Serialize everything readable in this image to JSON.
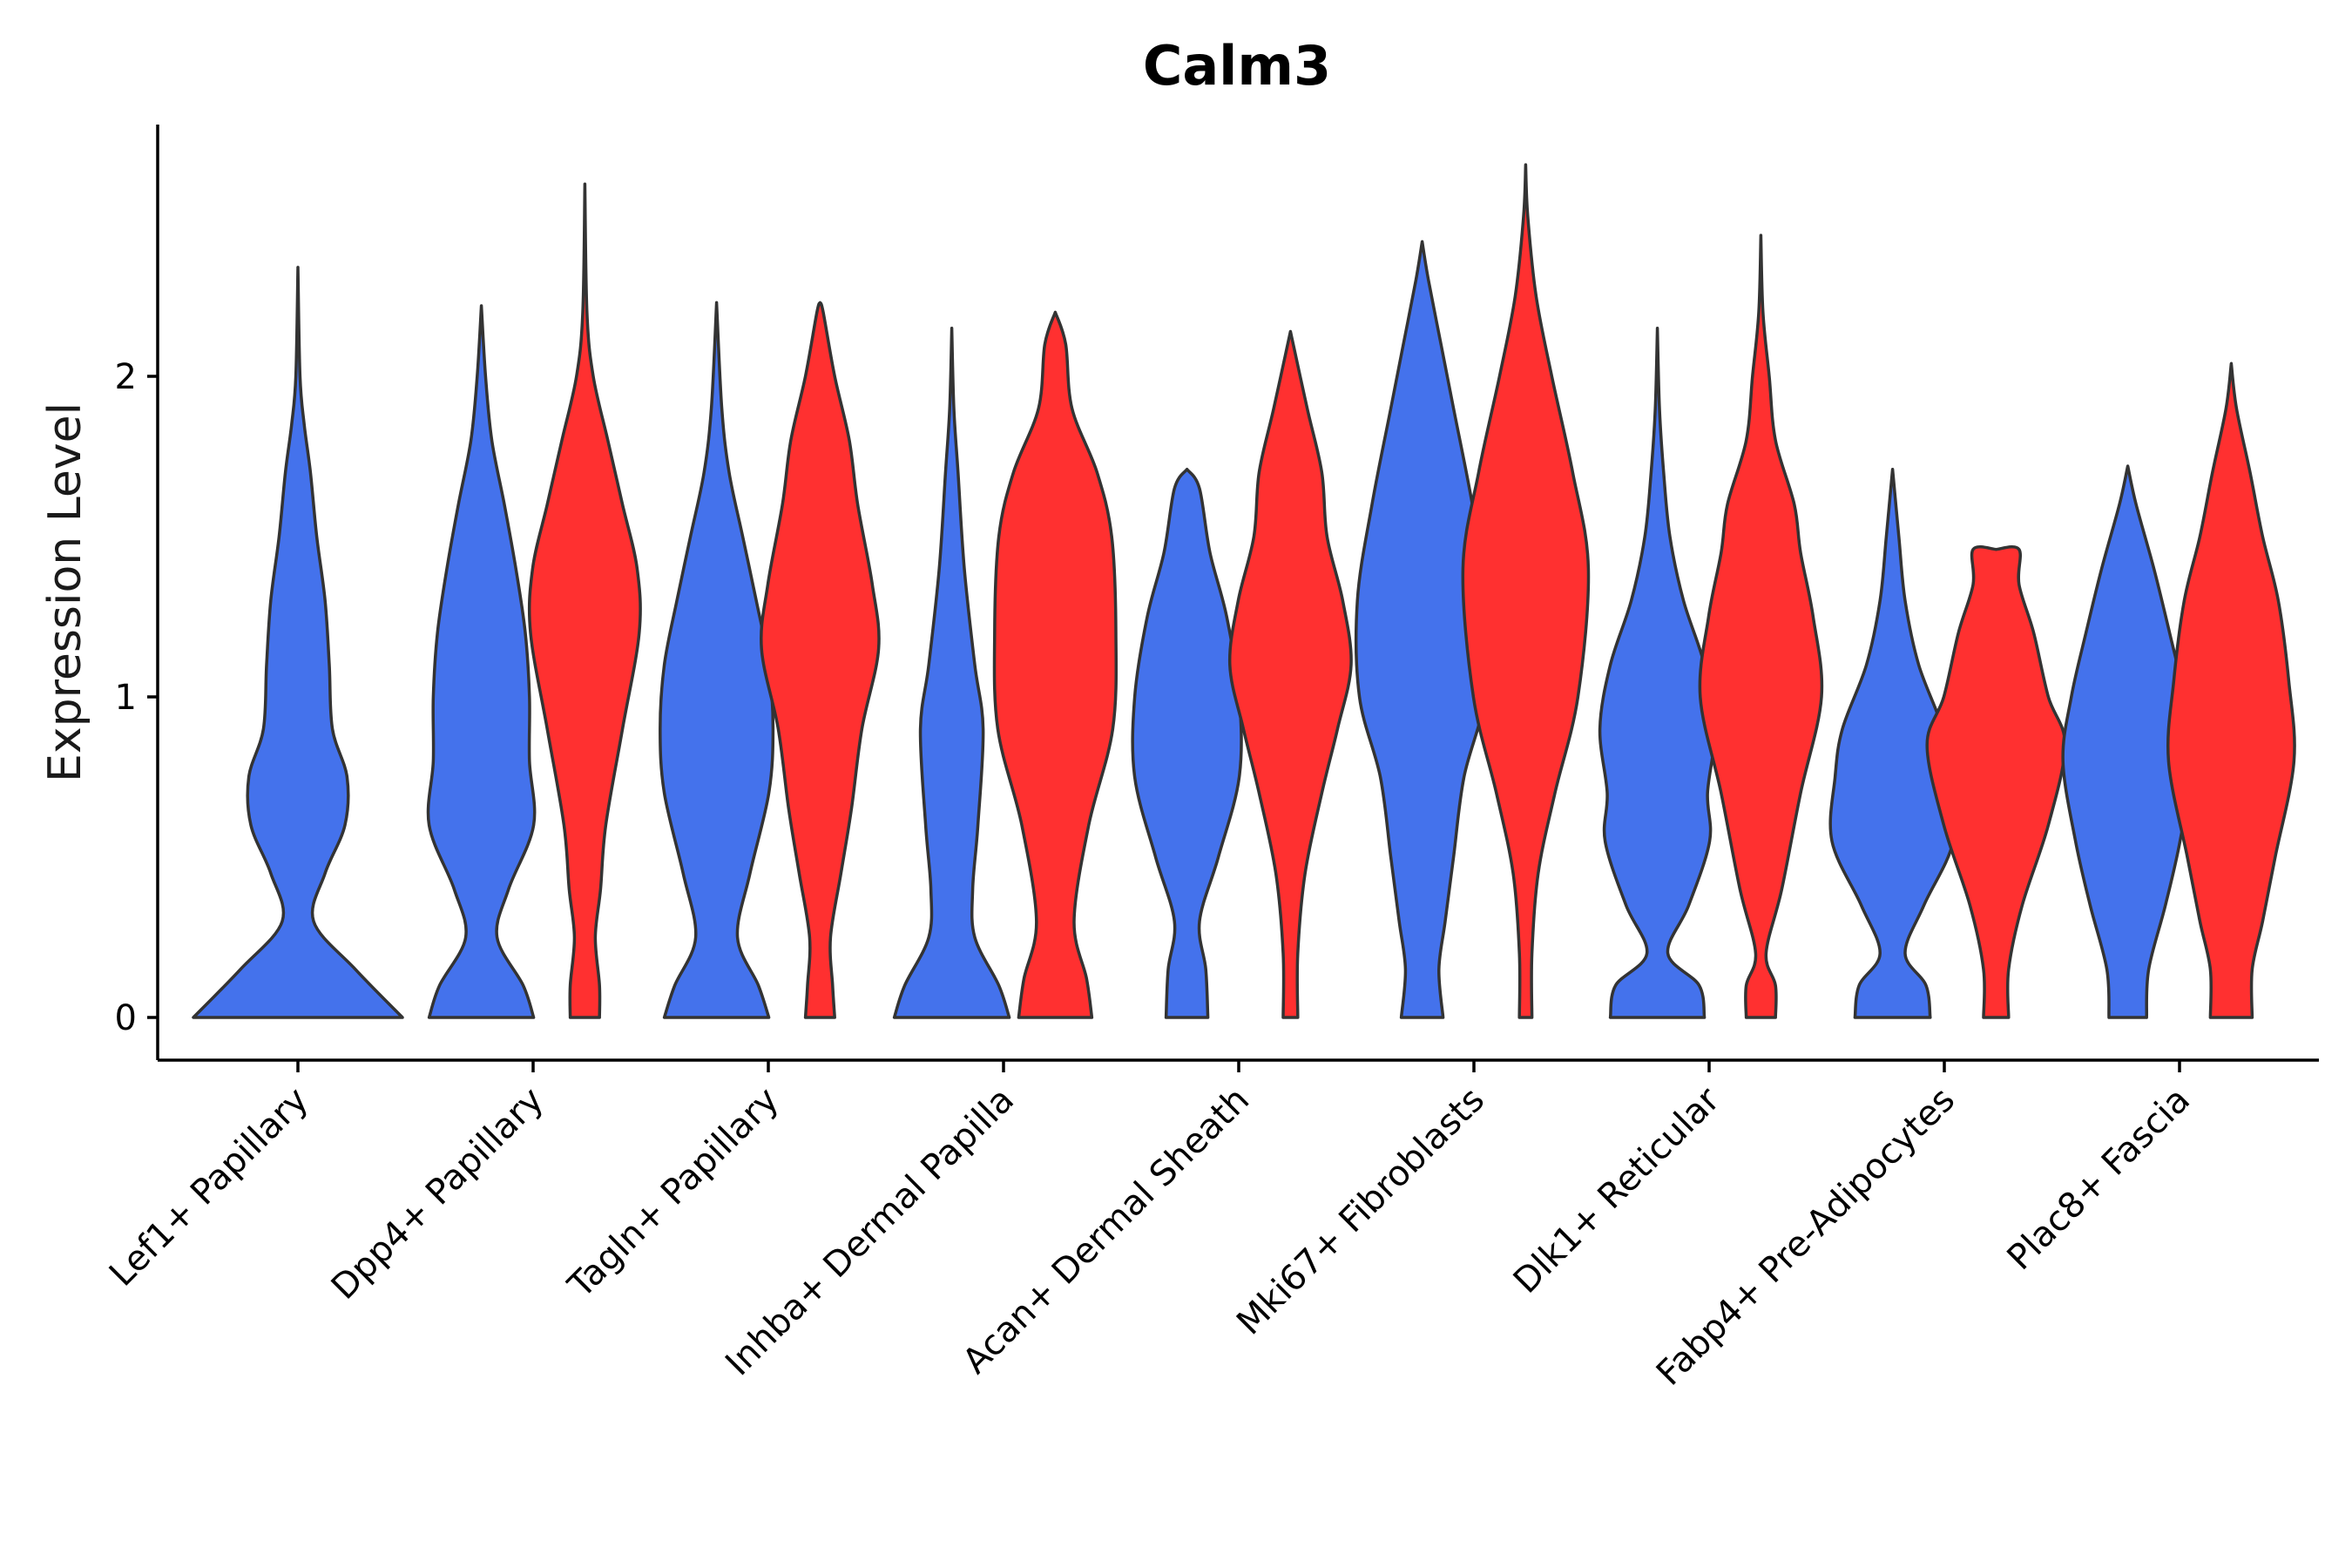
{
  "chart_data": {
    "type": "violin",
    "title": "Calm3",
    "xlabel": "",
    "ylabel": "Expression Level",
    "ylim": [
      -0.13,
      2.8
    ],
    "yticks": [
      0,
      1,
      2
    ],
    "grid": false,
    "legend": "none",
    "series_colors": [
      "#4472EC",
      "#FF3030"
    ],
    "categories": [
      "Lef1+ Papillary",
      "Dpp4+ Papillary",
      "Tagln+ Papillary",
      "Inhba+ Dermal Papilla",
      "Acan+ Dermal Sheath",
      "Mki67+ Fibroblasts",
      "Dlk1+ Reticular",
      "Fabp4+ Pre-Adipocytes",
      "Plac8+ Fascia"
    ],
    "violins": [
      {
        "category": 0,
        "series": 0,
        "offset": 0.0,
        "max": 2.34,
        "profile": [
          [
            0,
            1.0
          ],
          [
            0.15,
            0.55
          ],
          [
            0.3,
            0.15
          ],
          [
            0.45,
            0.26
          ],
          [
            0.6,
            0.45
          ],
          [
            0.75,
            0.47
          ],
          [
            0.9,
            0.33
          ],
          [
            1.1,
            0.3
          ],
          [
            1.3,
            0.26
          ],
          [
            1.5,
            0.18
          ],
          [
            1.7,
            0.12
          ],
          [
            1.85,
            0.06
          ],
          [
            2.0,
            0.02
          ],
          [
            2.34,
            0.0
          ]
        ]
      },
      {
        "category": 1,
        "series": 0,
        "offset": -0.22,
        "max": 2.22,
        "profile": [
          [
            0,
            0.5
          ],
          [
            0.1,
            0.4
          ],
          [
            0.25,
            0.15
          ],
          [
            0.4,
            0.26
          ],
          [
            0.6,
            0.5
          ],
          [
            0.8,
            0.46
          ],
          [
            1.0,
            0.46
          ],
          [
            1.2,
            0.42
          ],
          [
            1.4,
            0.33
          ],
          [
            1.6,
            0.22
          ],
          [
            1.8,
            0.1
          ],
          [
            2.0,
            0.04
          ],
          [
            2.22,
            0.0
          ]
        ]
      },
      {
        "category": 1,
        "series": 1,
        "offset": 0.22,
        "max": 2.6,
        "profile": [
          [
            0,
            0.14
          ],
          [
            0.1,
            0.14
          ],
          [
            0.25,
            0.1
          ],
          [
            0.4,
            0.15
          ],
          [
            0.6,
            0.2
          ],
          [
            0.9,
            0.36
          ],
          [
            1.2,
            0.52
          ],
          [
            1.4,
            0.5
          ],
          [
            1.6,
            0.36
          ],
          [
            1.8,
            0.22
          ],
          [
            2.0,
            0.08
          ],
          [
            2.2,
            0.02
          ],
          [
            2.6,
            0.0
          ]
        ]
      },
      {
        "category": 2,
        "series": 0,
        "offset": -0.22,
        "max": 2.23,
        "profile": [
          [
            0,
            0.5
          ],
          [
            0.1,
            0.4
          ],
          [
            0.25,
            0.2
          ],
          [
            0.45,
            0.32
          ],
          [
            0.7,
            0.5
          ],
          [
            0.9,
            0.54
          ],
          [
            1.1,
            0.5
          ],
          [
            1.3,
            0.38
          ],
          [
            1.5,
            0.25
          ],
          [
            1.7,
            0.12
          ],
          [
            1.9,
            0.05
          ],
          [
            2.23,
            0.0
          ]
        ]
      },
      {
        "category": 2,
        "series": 1,
        "offset": 0.22,
        "max": 2.23,
        "profile": [
          [
            0,
            0.14
          ],
          [
            0.1,
            0.12
          ],
          [
            0.25,
            0.1
          ],
          [
            0.45,
            0.2
          ],
          [
            0.65,
            0.3
          ],
          [
            0.9,
            0.4
          ],
          [
            1.15,
            0.56
          ],
          [
            1.35,
            0.5
          ],
          [
            1.6,
            0.36
          ],
          [
            1.8,
            0.28
          ],
          [
            2.0,
            0.14
          ],
          [
            2.2,
            0.03
          ],
          [
            2.23,
            0.0
          ]
        ]
      },
      {
        "category": 3,
        "series": 0,
        "offset": -0.22,
        "max": 2.15,
        "profile": [
          [
            0,
            0.55
          ],
          [
            0.1,
            0.45
          ],
          [
            0.25,
            0.22
          ],
          [
            0.4,
            0.2
          ],
          [
            0.6,
            0.25
          ],
          [
            0.9,
            0.3
          ],
          [
            1.1,
            0.22
          ],
          [
            1.4,
            0.12
          ],
          [
            1.7,
            0.06
          ],
          [
            1.9,
            0.02
          ],
          [
            2.15,
            0.0
          ]
        ]
      },
      {
        "category": 3,
        "series": 1,
        "offset": 0.22,
        "max": 2.2,
        "profile": [
          [
            0,
            0.35
          ],
          [
            0.12,
            0.3
          ],
          [
            0.3,
            0.18
          ],
          [
            0.6,
            0.32
          ],
          [
            0.9,
            0.55
          ],
          [
            1.2,
            0.58
          ],
          [
            1.5,
            0.54
          ],
          [
            1.7,
            0.4
          ],
          [
            1.9,
            0.16
          ],
          [
            2.1,
            0.1
          ],
          [
            2.2,
            0.0
          ]
        ]
      },
      {
        "category": 4,
        "series": 0,
        "offset": -0.22,
        "max": 1.71,
        "profile": [
          [
            0,
            0.2
          ],
          [
            0.15,
            0.18
          ],
          [
            0.3,
            0.12
          ],
          [
            0.5,
            0.3
          ],
          [
            0.75,
            0.5
          ],
          [
            1.0,
            0.5
          ],
          [
            1.25,
            0.38
          ],
          [
            1.45,
            0.22
          ],
          [
            1.65,
            0.12
          ],
          [
            1.71,
            0.0
          ]
        ]
      },
      {
        "category": 4,
        "series": 1,
        "offset": 0.22,
        "max": 2.14,
        "profile": [
          [
            0,
            0.07
          ],
          [
            0.2,
            0.07
          ],
          [
            0.45,
            0.14
          ],
          [
            0.7,
            0.3
          ],
          [
            0.9,
            0.45
          ],
          [
            1.1,
            0.58
          ],
          [
            1.3,
            0.5
          ],
          [
            1.5,
            0.35
          ],
          [
            1.7,
            0.3
          ],
          [
            1.9,
            0.16
          ],
          [
            2.14,
            0.0
          ]
        ]
      },
      {
        "category": 5,
        "series": 0,
        "offset": -0.22,
        "max": 2.42,
        "profile": [
          [
            0,
            0.2
          ],
          [
            0.15,
            0.16
          ],
          [
            0.3,
            0.22
          ],
          [
            0.5,
            0.3
          ],
          [
            0.75,
            0.4
          ],
          [
            1.0,
            0.6
          ],
          [
            1.3,
            0.62
          ],
          [
            1.6,
            0.48
          ],
          [
            1.9,
            0.3
          ],
          [
            2.1,
            0.18
          ],
          [
            2.3,
            0.06
          ],
          [
            2.42,
            0.0
          ]
        ]
      },
      {
        "category": 5,
        "series": 1,
        "offset": 0.22,
        "max": 2.66,
        "profile": [
          [
            0,
            0.06
          ],
          [
            0.2,
            0.06
          ],
          [
            0.45,
            0.12
          ],
          [
            0.7,
            0.28
          ],
          [
            1.0,
            0.5
          ],
          [
            1.4,
            0.6
          ],
          [
            1.7,
            0.45
          ],
          [
            2.0,
            0.25
          ],
          [
            2.25,
            0.1
          ],
          [
            2.5,
            0.02
          ],
          [
            2.66,
            0.0
          ]
        ]
      },
      {
        "category": 6,
        "series": 0,
        "offset": -0.22,
        "max": 2.15,
        "profile": [
          [
            0,
            0.45
          ],
          [
            0.1,
            0.4
          ],
          [
            0.2,
            0.1
          ],
          [
            0.35,
            0.3
          ],
          [
            0.55,
            0.5
          ],
          [
            0.7,
            0.48
          ],
          [
            0.9,
            0.55
          ],
          [
            1.1,
            0.45
          ],
          [
            1.3,
            0.25
          ],
          [
            1.5,
            0.12
          ],
          [
            1.7,
            0.06
          ],
          [
            1.9,
            0.02
          ],
          [
            2.15,
            0.0
          ]
        ]
      },
      {
        "category": 6,
        "series": 1,
        "offset": 0.22,
        "max": 2.44,
        "profile": [
          [
            0,
            0.14
          ],
          [
            0.1,
            0.14
          ],
          [
            0.2,
            0.05
          ],
          [
            0.4,
            0.2
          ],
          [
            0.7,
            0.38
          ],
          [
            1.0,
            0.58
          ],
          [
            1.25,
            0.5
          ],
          [
            1.45,
            0.38
          ],
          [
            1.6,
            0.32
          ],
          [
            1.8,
            0.14
          ],
          [
            2.0,
            0.08
          ],
          [
            2.2,
            0.02
          ],
          [
            2.44,
            0.0
          ]
        ]
      },
      {
        "category": 7,
        "series": 0,
        "offset": -0.22,
        "max": 1.71,
        "profile": [
          [
            0,
            0.36
          ],
          [
            0.1,
            0.32
          ],
          [
            0.2,
            0.12
          ],
          [
            0.35,
            0.3
          ],
          [
            0.55,
            0.58
          ],
          [
            0.75,
            0.55
          ],
          [
            0.9,
            0.48
          ],
          [
            1.1,
            0.25
          ],
          [
            1.3,
            0.12
          ],
          [
            1.5,
            0.06
          ],
          [
            1.71,
            0.0
          ]
        ]
      },
      {
        "category": 7,
        "series": 1,
        "offset": 0.22,
        "max": 1.46,
        "profile": [
          [
            0,
            0.12
          ],
          [
            0.15,
            0.12
          ],
          [
            0.35,
            0.25
          ],
          [
            0.6,
            0.5
          ],
          [
            0.85,
            0.66
          ],
          [
            1.0,
            0.5
          ],
          [
            1.2,
            0.36
          ],
          [
            1.35,
            0.22
          ],
          [
            1.46,
            0.22
          ],
          [
            1.46,
            0.0
          ]
        ]
      },
      {
        "category": 8,
        "series": 0,
        "offset": -0.22,
        "max": 1.72,
        "profile": [
          [
            0,
            0.18
          ],
          [
            0.15,
            0.2
          ],
          [
            0.35,
            0.36
          ],
          [
            0.55,
            0.5
          ],
          [
            0.8,
            0.62
          ],
          [
            1.0,
            0.54
          ],
          [
            1.2,
            0.4
          ],
          [
            1.4,
            0.25
          ],
          [
            1.6,
            0.08
          ],
          [
            1.72,
            0.0
          ]
        ]
      },
      {
        "category": 8,
        "series": 1,
        "offset": 0.22,
        "max": 2.04,
        "profile": [
          [
            0,
            0.2
          ],
          [
            0.15,
            0.2
          ],
          [
            0.3,
            0.3
          ],
          [
            0.5,
            0.42
          ],
          [
            0.8,
            0.6
          ],
          [
            1.05,
            0.55
          ],
          [
            1.3,
            0.45
          ],
          [
            1.5,
            0.3
          ],
          [
            1.7,
            0.18
          ],
          [
            1.9,
            0.05
          ],
          [
            2.04,
            0.0
          ]
        ]
      }
    ]
  }
}
